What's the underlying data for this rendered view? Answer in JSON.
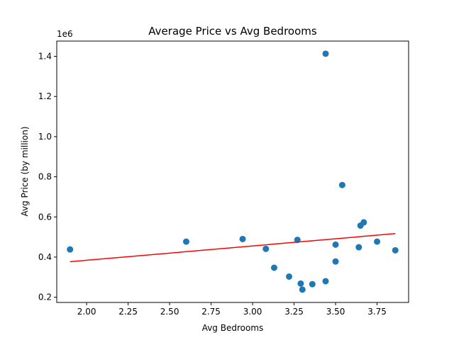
{
  "chart_data": {
    "type": "scatter",
    "title": "Average Price vs Avg Bedrooms",
    "xlabel": "Avg Bedrooms",
    "ylabel": "Avg Price (by million)",
    "y_offset_label": "1e6",
    "xlim": [
      1.82,
      3.94
    ],
    "ylim": [
      0.174,
      1.476
    ],
    "xticks": [
      2.0,
      2.25,
      2.5,
      2.75,
      3.0,
      3.25,
      3.5,
      3.75
    ],
    "xtick_labels": [
      "2.00",
      "2.25",
      "2.50",
      "2.75",
      "3.00",
      "3.25",
      "3.50",
      "3.75"
    ],
    "yticks": [
      0.2,
      0.4,
      0.6,
      0.8,
      1.0,
      1.2,
      1.4
    ],
    "ytick_labels": [
      "0.2",
      "0.4",
      "0.6",
      "0.8",
      "1.0",
      "1.2",
      "1.4"
    ],
    "grid": false,
    "marker_color": "#1f77b4",
    "line_color": "#ff0000",
    "points": [
      {
        "x": 1.9,
        "y": 0.438
      },
      {
        "x": 2.6,
        "y": 0.477
      },
      {
        "x": 2.94,
        "y": 0.49
      },
      {
        "x": 3.08,
        "y": 0.441
      },
      {
        "x": 3.13,
        "y": 0.347
      },
      {
        "x": 3.22,
        "y": 0.303
      },
      {
        "x": 3.27,
        "y": 0.486
      },
      {
        "x": 3.29,
        "y": 0.268
      },
      {
        "x": 3.3,
        "y": 0.238
      },
      {
        "x": 3.36,
        "y": 0.265
      },
      {
        "x": 3.44,
        "y": 0.28
      },
      {
        "x": 3.44,
        "y": 1.413
      },
      {
        "x": 3.5,
        "y": 0.378
      },
      {
        "x": 3.5,
        "y": 0.462
      },
      {
        "x": 3.54,
        "y": 0.759
      },
      {
        "x": 3.64,
        "y": 0.449
      },
      {
        "x": 3.65,
        "y": 0.557
      },
      {
        "x": 3.67,
        "y": 0.573
      },
      {
        "x": 3.75,
        "y": 0.477
      },
      {
        "x": 3.86,
        "y": 0.434
      }
    ],
    "trend_line": {
      "x": [
        1.9,
        3.86
      ],
      "y": [
        0.377,
        0.517
      ]
    }
  }
}
